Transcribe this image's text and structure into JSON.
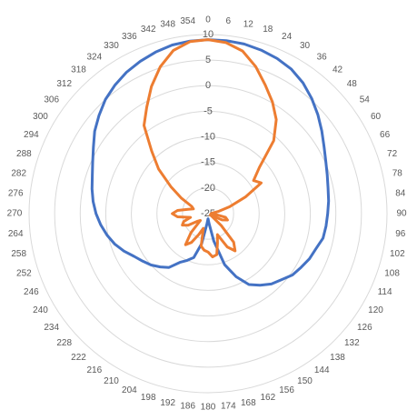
{
  "chart_data": {
    "type": "radar",
    "angle_labels": [
      "0",
      "6",
      "12",
      "18",
      "24",
      "30",
      "36",
      "42",
      "48",
      "54",
      "60",
      "66",
      "72",
      "78",
      "84",
      "90",
      "96",
      "102",
      "108",
      "114",
      "120",
      "126",
      "132",
      "138",
      "144",
      "150",
      "156",
      "162",
      "168",
      "174",
      "180",
      "186",
      "192",
      "198",
      "204",
      "210",
      "216",
      "222",
      "228",
      "234",
      "240",
      "246",
      "252",
      "258",
      "264",
      "270",
      "276",
      "282",
      "288",
      "294",
      "300",
      "306",
      "312",
      "318",
      "324",
      "330",
      "336",
      "342",
      "348",
      "354"
    ],
    "radial_ticks": [
      "-25",
      "-20",
      "-15",
      "-10",
      "-5",
      "0",
      "5",
      "10"
    ],
    "radial_range": [
      -25,
      10
    ],
    "grid": true,
    "legend": "none",
    "series": [
      {
        "color": "#4472c4",
        "points": [
          [
            0,
            9
          ],
          [
            6,
            9
          ],
          [
            12,
            8.9
          ],
          [
            18,
            8.6
          ],
          [
            24,
            8.2
          ],
          [
            30,
            7.6
          ],
          [
            36,
            6.6
          ],
          [
            42,
            5.3
          ],
          [
            48,
            3.9
          ],
          [
            54,
            2.5
          ],
          [
            60,
            1.2
          ],
          [
            66,
            0.2
          ],
          [
            72,
            -0.5
          ],
          [
            78,
            -1
          ],
          [
            84,
            -1.3
          ],
          [
            90,
            -1.6
          ],
          [
            96,
            -1.8
          ],
          [
            102,
            -2
          ],
          [
            108,
            -2.8
          ],
          [
            114,
            -3.3
          ],
          [
            120,
            -4
          ],
          [
            126,
            -4.6
          ],
          [
            132,
            -5.7
          ],
          [
            138,
            -6.5
          ],
          [
            144,
            -7.7
          ],
          [
            150,
            -9
          ],
          [
            156,
            -11.5
          ],
          [
            162,
            -14.5
          ],
          [
            168,
            -19.5
          ],
          [
            174,
            -23
          ],
          [
            180,
            -24
          ],
          [
            186,
            -23
          ],
          [
            192,
            -19
          ],
          [
            198,
            -16
          ],
          [
            204,
            -15
          ],
          [
            210,
            -14
          ],
          [
            216,
            -12
          ],
          [
            222,
            -11
          ],
          [
            228,
            -10
          ],
          [
            234,
            -9.2
          ],
          [
            240,
            -8.3
          ],
          [
            246,
            -7
          ],
          [
            252,
            -5.8
          ],
          [
            258,
            -4.8
          ],
          [
            264,
            -3.9
          ],
          [
            270,
            -3.1
          ],
          [
            276,
            -2.4
          ],
          [
            282,
            -1.8
          ],
          [
            288,
            -1.2
          ],
          [
            294,
            -0.3
          ],
          [
            300,
            0.9
          ],
          [
            306,
            2.4
          ],
          [
            312,
            3.7
          ],
          [
            318,
            5
          ],
          [
            324,
            6
          ],
          [
            330,
            6.9
          ],
          [
            336,
            7.6
          ],
          [
            342,
            8.2
          ],
          [
            348,
            8.7
          ],
          [
            354,
            8.9
          ]
        ]
      },
      {
        "color": "#ed7d31",
        "points": [
          [
            0,
            9
          ],
          [
            6,
            8.6
          ],
          [
            12,
            7.5
          ],
          [
            18,
            5.2
          ],
          [
            24,
            2.5
          ],
          [
            30,
            0.2
          ],
          [
            36,
            -2.3
          ],
          [
            42,
            -5.8
          ],
          [
            48,
            -11.5
          ],
          [
            54,
            -14
          ],
          [
            60,
            -13
          ],
          [
            66,
            -17
          ],
          [
            72,
            -20.5
          ],
          [
            78,
            -23
          ],
          [
            84,
            -24.2
          ],
          [
            90,
            -24.4
          ],
          [
            96,
            -23.5
          ],
          [
            102,
            -21.5
          ],
          [
            108,
            -21
          ],
          [
            114,
            -22
          ],
          [
            120,
            -24.5
          ],
          [
            126,
            -24
          ],
          [
            132,
            -21.5
          ],
          [
            138,
            -17.5
          ],
          [
            144,
            -16
          ],
          [
            150,
            -17.5
          ],
          [
            156,
            -20.5
          ],
          [
            162,
            -19
          ],
          [
            168,
            -16.8
          ],
          [
            174,
            -16.5
          ],
          [
            180,
            -17.5
          ],
          [
            186,
            -17.8
          ],
          [
            192,
            -18.5
          ],
          [
            198,
            -22
          ],
          [
            204,
            -20.5
          ],
          [
            210,
            -18.5
          ],
          [
            216,
            -17.5
          ],
          [
            222,
            -20
          ],
          [
            228,
            -23
          ],
          [
            234,
            -22.5
          ],
          [
            240,
            -20.5
          ],
          [
            246,
            -19.5
          ],
          [
            252,
            -20
          ],
          [
            258,
            -21.5
          ],
          [
            264,
            -19
          ],
          [
            270,
            -18
          ],
          [
            276,
            -19
          ],
          [
            282,
            -21
          ],
          [
            288,
            -22
          ],
          [
            294,
            -21.5
          ],
          [
            300,
            -19
          ],
          [
            306,
            -16
          ],
          [
            312,
            -12
          ],
          [
            318,
            -8.5
          ],
          [
            324,
            -3.7
          ],
          [
            330,
            -1
          ],
          [
            336,
            2.2
          ],
          [
            342,
            5.2
          ],
          [
            348,
            7.6
          ],
          [
            354,
            8.8
          ]
        ]
      }
    ]
  }
}
